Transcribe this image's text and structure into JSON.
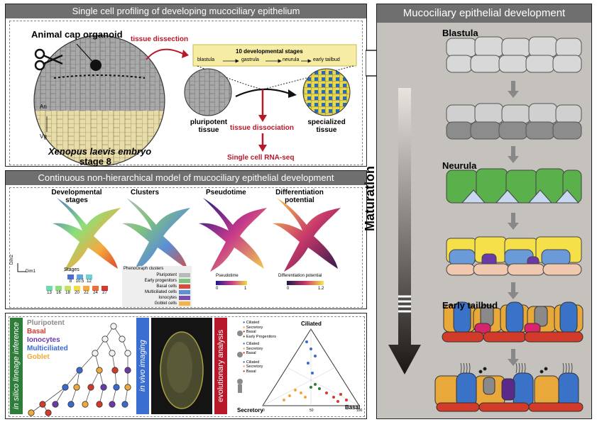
{
  "top_panel": {
    "title": "Single cell profiling of developing mucociliary epithelium",
    "animal_cap": "Animal cap organoid",
    "species": "Xenopus laevis embryo",
    "stage": "stage 8",
    "an": "An",
    "vg": "Vg",
    "tissue_dissection": "tissue dissection",
    "stages_title": "10 developmental stages",
    "stage_names": [
      "blastula",
      "gastrula",
      "neurula",
      "early tailbud"
    ],
    "pluripotent": "pluripotent",
    "tissue_word": "tissue",
    "specialized": "specialized",
    "tissue_dissociation": "tissue dissociation",
    "rnaseq": "Single cell RNA-seq"
  },
  "middle_panel": {
    "title": "Continuous non-hierarchical model of mucociliary epithelial development",
    "umap_titles": [
      [
        "Developmental",
        "stages"
      ],
      [
        "Clusters",
        ""
      ],
      [
        "Pseudotime",
        ""
      ],
      [
        "Differentiation",
        "potential"
      ]
    ],
    "dim1": "Dim1",
    "dim2": "Dim2",
    "stages_legend_title": "Stages",
    "stages_row1": [
      "8",
      "10.5",
      "12"
    ],
    "stages_row2": [
      "13",
      "16",
      "18",
      "20",
      "22",
      "24",
      "27"
    ],
    "stage_colors_row1": [
      "#4b6fd0",
      "#5aa6e0",
      "#6fd0d8"
    ],
    "stage_colors_row2": [
      "#6fd9b0",
      "#8be07a",
      "#c6e35c",
      "#f2dc4a",
      "#f6a83d",
      "#ef6b3a",
      "#d8382e"
    ],
    "pheno_title": "PhenoGraph clusters",
    "pheno_labels": [
      "Pluripotent",
      "Early progenitors",
      "Basal cells",
      "Multiciliated cells",
      "Ionocytes",
      "Goblet cells"
    ],
    "pheno_colors": [
      "#b8bab8",
      "#7ec27e",
      "#d94a3a",
      "#5b8fd6",
      "#7a4bb0",
      "#f2b347"
    ],
    "pseudotime_label": "Pseudotime",
    "pseudo_min": "0",
    "pseudo_max": "1",
    "diff_label": "Differentiation potential",
    "diff_min": "0",
    "diff_max": "1.2"
  },
  "bottom_panel": {
    "insilico": "in silico lineage inference",
    "lineages": [
      "Pluripotent",
      "Basal",
      "Ionocytes",
      "Multiciliated",
      "Goblet"
    ],
    "lineage_colors": [
      "#8a8a8a",
      "#d23a2a",
      "#6a3aa8",
      "#3a6ad0",
      "#f0a83a"
    ],
    "invivo": "in vivo imaging",
    "evolutionary": "evolutionary analysis",
    "ternary_top": "Ciliated",
    "ternary_left": "Secretory",
    "ternary_right": "Basal",
    "legend_groups": [
      [
        "Ciliated",
        "Secretory",
        "Basal",
        "Early Progenitors"
      ],
      [
        "Ciliated",
        "Secretory",
        "Basal"
      ],
      [
        "Ciliated",
        "Secretory",
        "Basal"
      ]
    ],
    "tick_0": "0",
    "tick_50": "50",
    "tick_100": "100"
  },
  "right_panel": {
    "title": "Mucociliary epithelial development",
    "blastula": "Blastula",
    "neurula": "Neurula",
    "early_tailbud": "Early tailbud",
    "maturation": "Maturation"
  },
  "colors": {
    "accent_red": "#b8192a",
    "header_gray": "#6f6f6f",
    "right_bg": "#c5c1bc",
    "green_label": "#2e7d3a",
    "blue_label": "#3a6ed0",
    "red_label": "#b8192a"
  }
}
